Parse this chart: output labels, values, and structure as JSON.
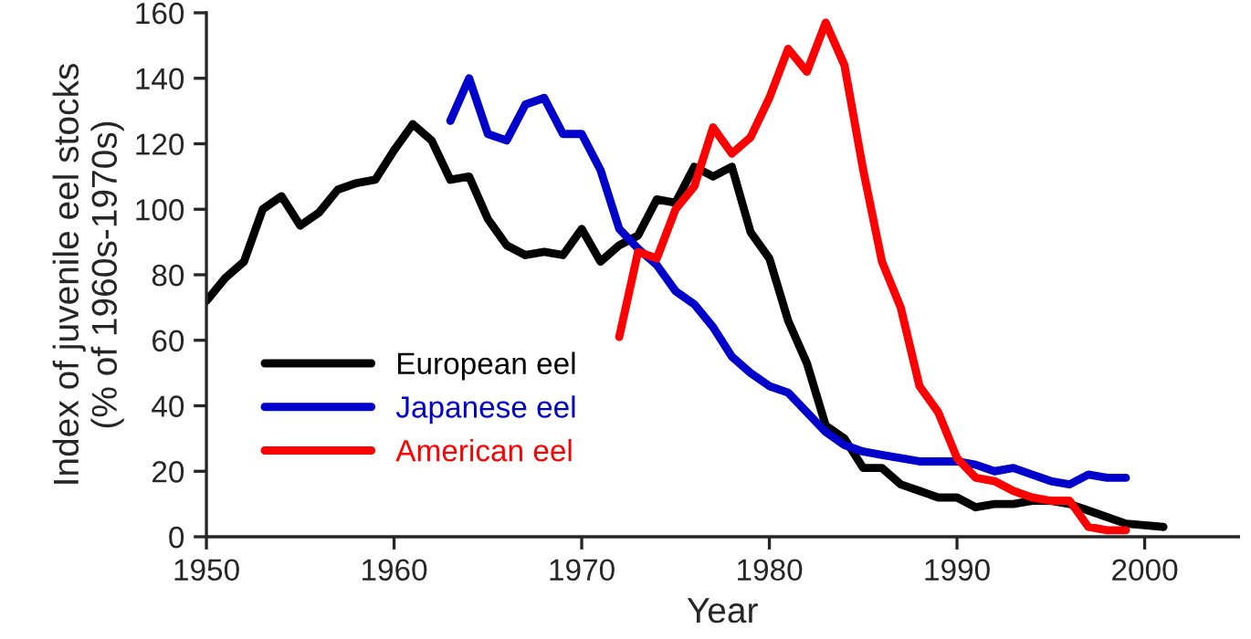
{
  "chart_data": {
    "type": "line",
    "xlabel": "Year",
    "ylabel": "Index of juvenile eel stocks\n(% of 1960s-1970s)",
    "xlim": [
      1950,
      2005
    ],
    "xticks": [
      1950,
      1960,
      1970,
      1980,
      1990,
      2000
    ],
    "ylim": [
      0,
      160
    ],
    "yticks": [
      0,
      20,
      40,
      60,
      80,
      100,
      120,
      140,
      160
    ],
    "grid": false,
    "legend": "bottom left",
    "marker": "none",
    "line_style": "solid",
    "series": [
      {
        "name": "European eel",
        "color": "#000000",
        "x": [
          1950,
          1951,
          1952,
          1953,
          1954,
          1955,
          1956,
          1957,
          1958,
          1959,
          1960,
          1961,
          1962,
          1963,
          1964,
          1965,
          1966,
          1967,
          1968,
          1969,
          1970,
          1971,
          1972,
          1973,
          1974,
          1975,
          1976,
          1977,
          1978,
          1979,
          1980,
          1981,
          1982,
          1983,
          1984,
          1985,
          1986,
          1987,
          1988,
          1989,
          1990,
          1991,
          1992,
          1993,
          1994,
          1995,
          1996,
          1997,
          1998,
          1999,
          2000,
          2001
        ],
        "values": [
          72,
          79,
          84,
          100,
          104,
          95,
          99,
          106,
          108,
          109,
          118,
          126,
          121,
          109,
          110,
          97,
          89,
          86,
          87,
          86,
          94,
          84,
          89,
          92,
          103,
          102,
          113,
          110,
          113,
          93,
          85,
          66,
          53,
          34,
          30,
          21,
          21,
          16,
          14,
          12,
          12,
          9,
          10,
          10,
          11,
          11,
          10,
          8,
          6,
          4,
          3.5,
          3
        ]
      },
      {
        "name": "Japanese eel",
        "color": "#0000cc",
        "x": [
          1963,
          1964,
          1965,
          1966,
          1967,
          1968,
          1969,
          1970,
          1971,
          1972,
          1973,
          1974,
          1975,
          1976,
          1977,
          1978,
          1979,
          1980,
          1981,
          1982,
          1983,
          1984,
          1985,
          1986,
          1987,
          1988,
          1989,
          1990,
          1991,
          1992,
          1993,
          1994,
          1995,
          1996,
          1997,
          1998,
          1999
        ],
        "values": [
          127,
          140,
          123,
          121,
          132,
          134,
          123,
          123,
          112,
          94,
          88,
          83,
          75,
          71,
          64,
          55,
          50,
          46,
          44,
          38,
          32,
          28,
          26,
          25,
          24,
          23,
          23,
          23,
          22,
          20,
          21,
          19,
          17,
          16,
          19,
          18,
          18
        ]
      },
      {
        "name": "American eel",
        "color": "#ff0000",
        "x": [
          1972,
          1973,
          1974,
          1975,
          1976,
          1977,
          1978,
          1979,
          1980,
          1981,
          1982,
          1983,
          1984,
          1985,
          1986,
          1987,
          1988,
          1989,
          1990,
          1991,
          1992,
          1993,
          1994,
          1995,
          1996,
          1997,
          1998,
          1999
        ],
        "values": [
          61,
          87,
          85,
          100,
          107,
          125,
          117,
          122,
          134,
          149,
          142,
          157,
          144,
          112,
          84,
          70,
          46,
          38,
          24,
          18,
          17,
          14,
          12,
          11,
          11,
          3,
          2,
          2
        ]
      }
    ]
  }
}
